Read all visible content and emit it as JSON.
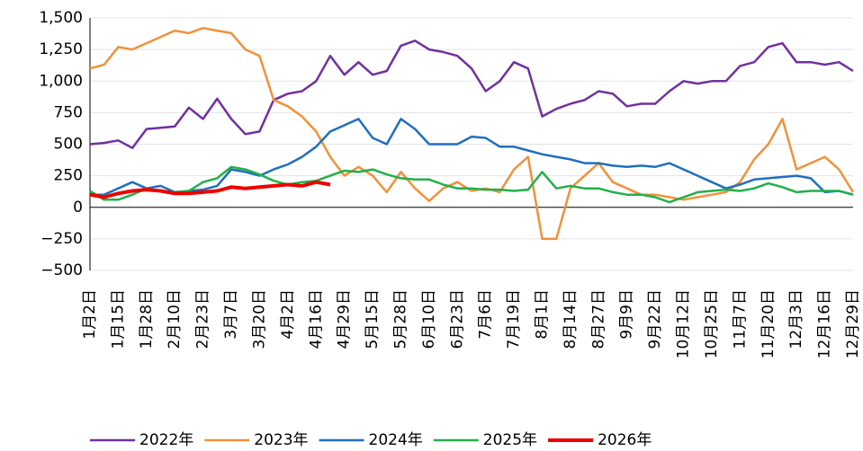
{
  "chart_data": {
    "type": "line",
    "categories": [
      "1月2日",
      null,
      "1月15日",
      null,
      "1月28日",
      null,
      "2月10日",
      null,
      "2月23日",
      null,
      "3月7日",
      null,
      "3月20日",
      null,
      "4月2日",
      null,
      "4月16日",
      null,
      "4月29日",
      null,
      "5月15日",
      null,
      "5月28日",
      null,
      "6月10日",
      null,
      "6月23日",
      null,
      "7月6日",
      null,
      "7月19日",
      null,
      "8月1日",
      null,
      "8月14日",
      null,
      "8月27日",
      null,
      "9月9日",
      null,
      "9月22日",
      null,
      "10月12日",
      null,
      "10月25日",
      null,
      "11月7日",
      null,
      "11月20日",
      null,
      "12月3日",
      null,
      "12月16日",
      null,
      "12月29日"
    ],
    "series": [
      {
        "name": "2022年",
        "color": "#7030a0",
        "width": 2.5,
        "values": [
          500,
          510,
          530,
          470,
          620,
          630,
          640,
          790,
          700,
          860,
          700,
          580,
          600,
          850,
          900,
          920,
          1000,
          1200,
          1050,
          1150,
          1050,
          1080,
          1280,
          1320,
          1250,
          1230,
          1200,
          1100,
          920,
          1000,
          1150,
          1100,
          720,
          780,
          820,
          850,
          920,
          900,
          800,
          820,
          820,
          920,
          1000,
          980,
          1000,
          1000,
          1120,
          1150,
          1270,
          1300,
          1150,
          1150,
          1130,
          1150,
          1080
        ]
      },
      {
        "name": "2023年",
        "color": "#f0923a",
        "width": 2.5,
        "values": [
          1100,
          1130,
          1270,
          1250,
          1300,
          1350,
          1400,
          1380,
          1420,
          1400,
          1380,
          1250,
          1200,
          850,
          800,
          720,
          600,
          400,
          250,
          320,
          250,
          120,
          280,
          150,
          50,
          150,
          200,
          130,
          150,
          120,
          300,
          400,
          -250,
          -250,
          150,
          250,
          350,
          200,
          150,
          100,
          100,
          80,
          60,
          80,
          100,
          120,
          200,
          380,
          500,
          700,
          300,
          350,
          400,
          300,
          120
        ]
      },
      {
        "name": "2024年",
        "color": "#1f6fbf",
        "width": 2.5,
        "values": [
          100,
          100,
          150,
          200,
          150,
          170,
          120,
          130,
          140,
          170,
          300,
          280,
          250,
          300,
          340,
          400,
          480,
          600,
          650,
          700,
          550,
          500,
          700,
          620,
          500,
          500,
          500,
          560,
          550,
          480,
          480,
          450,
          420,
          400,
          380,
          350,
          350,
          330,
          320,
          330,
          320,
          350,
          300,
          250,
          200,
          150,
          180,
          220,
          230,
          240,
          250,
          230,
          120,
          130,
          100
        ]
      },
      {
        "name": "2025年",
        "color": "#22b04a",
        "width": 2.5,
        "values": [
          130,
          60,
          60,
          100,
          150,
          130,
          120,
          130,
          200,
          230,
          320,
          300,
          260,
          210,
          180,
          200,
          210,
          250,
          290,
          280,
          300,
          260,
          230,
          220,
          220,
          180,
          150,
          150,
          140,
          140,
          130,
          140,
          280,
          150,
          170,
          150,
          150,
          120,
          100,
          100,
          80,
          40,
          80,
          120,
          130,
          140,
          130,
          150,
          190,
          160,
          120,
          130,
          130,
          130,
          100
        ]
      },
      {
        "name": "2026年",
        "color": "#ee0000",
        "width": 4,
        "values": [
          100,
          80,
          110,
          130,
          140,
          130,
          110,
          110,
          120,
          130,
          160,
          150,
          160,
          170,
          180,
          170,
          200,
          180,
          null,
          null,
          null,
          null,
          null,
          null,
          null,
          null,
          null,
          null,
          null,
          null,
          null,
          null,
          null,
          null,
          null,
          null,
          null,
          null,
          null,
          null,
          null,
          null,
          null,
          null,
          null,
          null,
          null,
          null,
          null,
          null,
          null,
          null,
          null,
          null,
          null
        ]
      }
    ],
    "ylim": [
      -500,
      1500
    ],
    "yticks": [
      {
        "value": 1500,
        "label": "1,500"
      },
      {
        "value": 1250,
        "label": "1,250"
      },
      {
        "value": 1000,
        "label": "1,000"
      },
      750,
      500,
      250,
      0,
      {
        "value": -250,
        "label": "−250"
      },
      {
        "value": -500,
        "label": "−500"
      }
    ],
    "grid": true
  }
}
